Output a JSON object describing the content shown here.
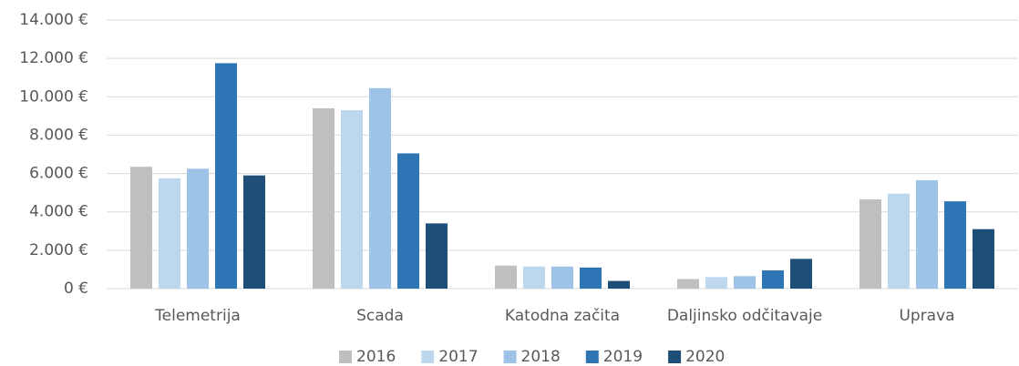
{
  "chart_data": {
    "type": "bar",
    "categories": [
      "Telemetrija",
      "Scada",
      "Katodna začita",
      "Daljinsko odčitavaje",
      "Uprava"
    ],
    "series": [
      {
        "name": "2016",
        "color": "#bfbfbf",
        "values": [
          6350,
          9400,
          1200,
          500,
          4650
        ]
      },
      {
        "name": "2017",
        "color": "#bdd7ee",
        "values": [
          5750,
          9300,
          1150,
          600,
          4950
        ]
      },
      {
        "name": "2018",
        "color": "#9dc3e6",
        "values": [
          6250,
          10450,
          1150,
          650,
          5650
        ]
      },
      {
        "name": "2019",
        "color": "#2e75b6",
        "values": [
          11750,
          7050,
          1100,
          950,
          4550
        ]
      },
      {
        "name": "2020",
        "color": "#1f4e79",
        "values": [
          5900,
          3400,
          400,
          1550,
          3100
        ]
      }
    ],
    "ylim": [
      0,
      14000
    ],
    "yticks": [
      {
        "value": 0,
        "label": "0 €"
      },
      {
        "value": 2000,
        "label": "2.000 €"
      },
      {
        "value": 4000,
        "label": "4.000 €"
      },
      {
        "value": 6000,
        "label": "6.000 €"
      },
      {
        "value": 8000,
        "label": "8.000 €"
      },
      {
        "value": 10000,
        "label": "10.000 €"
      },
      {
        "value": 12000,
        "label": "12.000 €"
      },
      {
        "value": 14000,
        "label": "14.000 €"
      }
    ],
    "grid": true,
    "legend": "bottom"
  }
}
